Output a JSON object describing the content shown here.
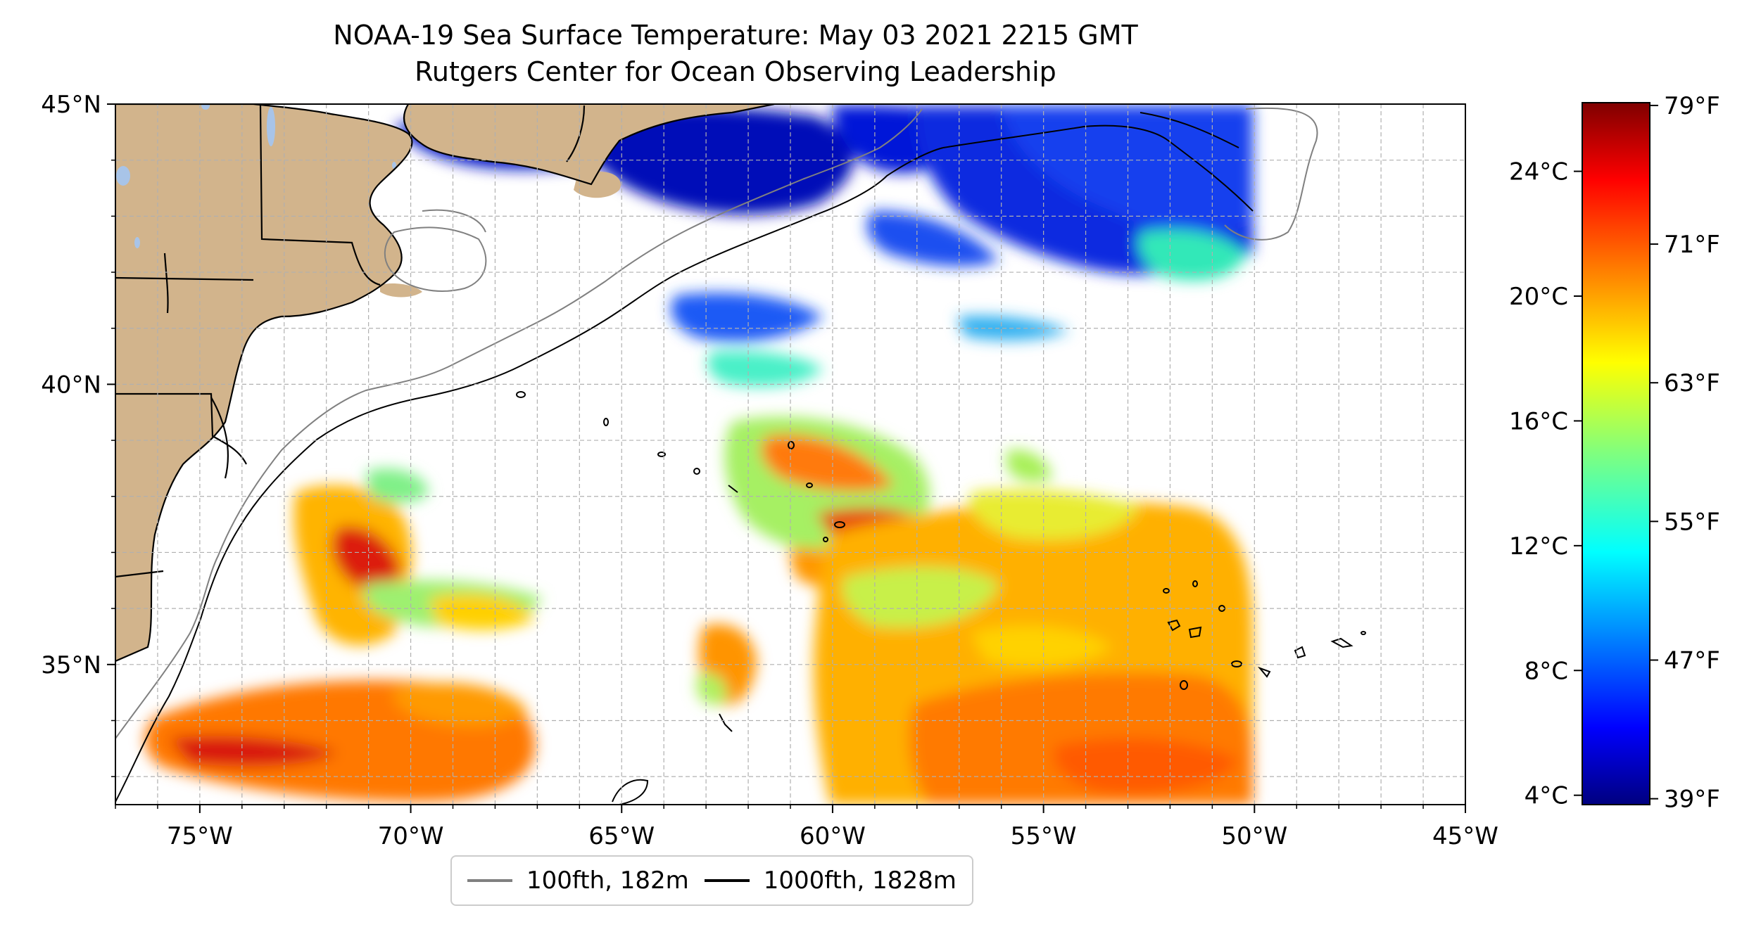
{
  "title": "NOAA-19 Sea Surface Temperature: May 03 2021 2215 GMT",
  "subtitle": "Rutgers Center for Ocean Observing Leadership",
  "colors": {
    "land": "#d2b48c",
    "lakes": "#a8c4e8",
    "isobath_100fth": "#808080",
    "isobath_1000fth": "#000000",
    "grid": "#b0b0b0"
  },
  "map": {
    "lon_range": [
      -77,
      -45
    ],
    "lat_range": [
      32.5,
      45
    ],
    "grid": true,
    "x_ticks": [
      {
        "value": -75,
        "label": "75°W"
      },
      {
        "value": -70,
        "label": "70°W"
      },
      {
        "value": -65,
        "label": "65°W"
      },
      {
        "value": -60,
        "label": "60°W"
      },
      {
        "value": -55,
        "label": "55°W"
      },
      {
        "value": -50,
        "label": "50°W"
      },
      {
        "value": -45,
        "label": "45°W"
      }
    ],
    "y_ticks": [
      {
        "value": 45,
        "label": "45°N"
      },
      {
        "value": 40,
        "label": "40°N"
      },
      {
        "value": 35,
        "label": "35°N"
      }
    ]
  },
  "colorbar": {
    "colormap": "jet",
    "range_c": [
      3.7,
      26.2
    ],
    "celsius_ticks": [
      {
        "value": 4,
        "label": "4°C"
      },
      {
        "value": 8,
        "label": "8°C"
      },
      {
        "value": 12,
        "label": "12°C"
      },
      {
        "value": 16,
        "label": "16°C"
      },
      {
        "value": 20,
        "label": "20°C"
      },
      {
        "value": 24,
        "label": "24°C"
      }
    ],
    "fahrenheit_ticks": [
      {
        "value": 39,
        "label": "39°F"
      },
      {
        "value": 47,
        "label": "47°F"
      },
      {
        "value": 55,
        "label": "55°F"
      },
      {
        "value": 63,
        "label": "63°F"
      },
      {
        "value": 71,
        "label": "71°F"
      },
      {
        "value": 79,
        "label": "79°F"
      }
    ]
  },
  "legend": {
    "placement": "bottom-center",
    "entries": [
      {
        "label": "100fth, 182m",
        "color": "#808080"
      },
      {
        "label": "1000fth, 1828m",
        "color": "#000000"
      }
    ]
  }
}
